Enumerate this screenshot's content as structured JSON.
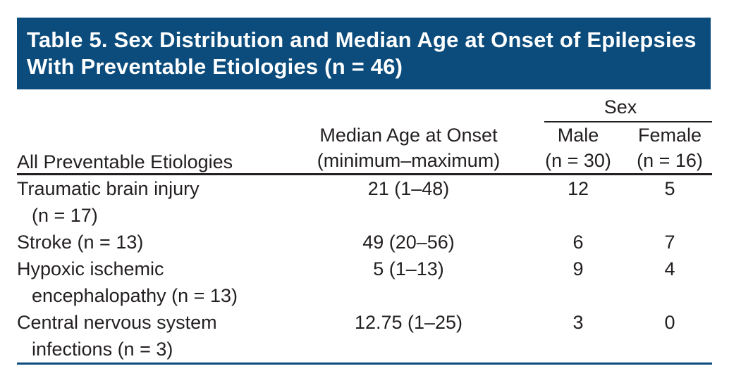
{
  "title": "Table 5. Sex Distribution and Median Age at Onset of Epilepsies With Preventable Etiologies (n = 46)",
  "table": {
    "headers": {
      "etiology": "All Preventable Etiologies",
      "median_line1": "Median Age at Onset",
      "median_line2": "(minimum–maximum)",
      "sex_group": "Sex",
      "male_line1": "Male",
      "male_line2": "(n = 30)",
      "female_line1": "Female",
      "female_line2": "(n = 16)"
    },
    "rows": [
      {
        "etiology_line1": "Traumatic brain injury",
        "etiology_line2": "(n = 17)",
        "median_age": "21 (1–48)",
        "male": "12",
        "female": "5"
      },
      {
        "etiology_line1": "Stroke (n = 13)",
        "etiology_line2": "",
        "median_age": "49 (20–56)",
        "male": "6",
        "female": "7"
      },
      {
        "etiology_line1": "Hypoxic ischemic",
        "etiology_line2": "encephalopathy (n = 13)",
        "median_age": "5 (1–13)",
        "male": "9",
        "female": "4"
      },
      {
        "etiology_line1": "Central nervous system",
        "etiology_line2": "infections (n = 3)",
        "median_age": "12.75 (1–25)",
        "male": "3",
        "female": "0"
      }
    ]
  },
  "colors": {
    "banner_background": "#0b4c7c",
    "banner_text": "#ffffff",
    "body_text": "#231f20",
    "header_rule": "#231f20",
    "bottom_rule": "#0b4c7c"
  }
}
